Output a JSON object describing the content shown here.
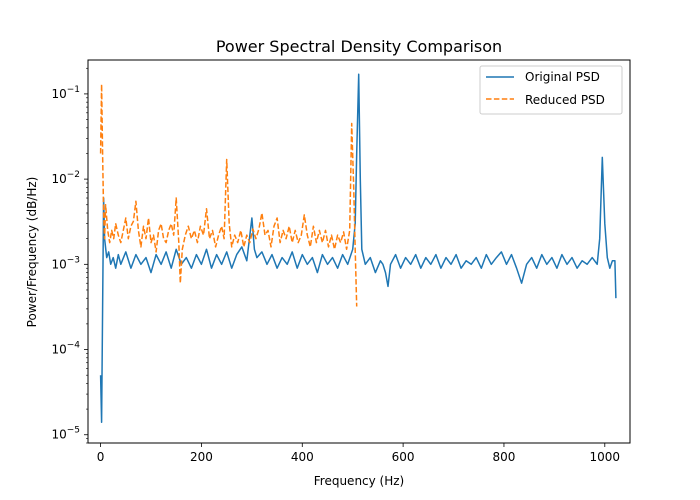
{
  "chart_data": {
    "type": "line",
    "title": "Power Spectral Density Comparison",
    "xlabel": "Frequency (Hz)",
    "ylabel": "Power/Frequency (dB/Hz)",
    "xlim": [
      -25,
      1050
    ],
    "ylim": [
      8e-06,
      0.25
    ],
    "yscale": "log",
    "grid": false,
    "legend_position": "top-right",
    "x_ticks": [
      0,
      200,
      400,
      600,
      800,
      1000
    ],
    "x_tick_labels": [
      "0",
      "200",
      "400",
      "600",
      "800",
      "1000"
    ],
    "y_ticks": [
      1e-05,
      0.0001,
      0.001,
      0.01,
      0.1
    ],
    "y_tick_labels": [
      "10^-5",
      "10^-4",
      "10^-3",
      "10^-2",
      "10^-1"
    ],
    "series": [
      {
        "name": "Original PSD",
        "color": "#1f77b4",
        "style": "solid",
        "points": [
          [
            0,
            5e-05
          ],
          [
            2,
            1.4e-05
          ],
          [
            4,
            0.0003
          ],
          [
            6,
            0.006
          ],
          [
            8,
            0.002
          ],
          [
            12,
            0.0012
          ],
          [
            16,
            0.0014
          ],
          [
            20,
            0.001
          ],
          [
            25,
            0.0012
          ],
          [
            30,
            0.0009
          ],
          [
            35,
            0.0013
          ],
          [
            40,
            0.001
          ],
          [
            50,
            0.0014
          ],
          [
            60,
            0.0009
          ],
          [
            70,
            0.0013
          ],
          [
            80,
            0.001
          ],
          [
            90,
            0.0012
          ],
          [
            100,
            0.0008
          ],
          [
            110,
            0.0013
          ],
          [
            120,
            0.001
          ],
          [
            130,
            0.0014
          ],
          [
            140,
            0.0009
          ],
          [
            150,
            0.0015
          ],
          [
            160,
            0.001
          ],
          [
            170,
            0.0012
          ],
          [
            180,
            0.0009
          ],
          [
            190,
            0.0013
          ],
          [
            200,
            0.001
          ],
          [
            210,
            0.0015
          ],
          [
            220,
            0.0009
          ],
          [
            230,
            0.0013
          ],
          [
            240,
            0.001
          ],
          [
            250,
            0.0014
          ],
          [
            260,
            0.0009
          ],
          [
            270,
            0.0013
          ],
          [
            280,
            0.0016
          ],
          [
            290,
            0.0011
          ],
          [
            300,
            0.0035
          ],
          [
            305,
            0.0015
          ],
          [
            310,
            0.0012
          ],
          [
            320,
            0.0014
          ],
          [
            330,
            0.001
          ],
          [
            340,
            0.0013
          ],
          [
            350,
            0.0009
          ],
          [
            360,
            0.0012
          ],
          [
            370,
            0.001
          ],
          [
            380,
            0.0014
          ],
          [
            390,
            0.0009
          ],
          [
            400,
            0.0013
          ],
          [
            410,
            0.001
          ],
          [
            420,
            0.0012
          ],
          [
            430,
            0.0008
          ],
          [
            440,
            0.0013
          ],
          [
            450,
            0.001
          ],
          [
            460,
            0.0012
          ],
          [
            470,
            0.0009
          ],
          [
            480,
            0.0013
          ],
          [
            490,
            0.001
          ],
          [
            500,
            0.0015
          ],
          [
            505,
            0.003
          ],
          [
            508,
            0.02
          ],
          [
            512,
            0.17
          ],
          [
            515,
            0.01
          ],
          [
            518,
            0.0015
          ],
          [
            525,
            0.001
          ],
          [
            535,
            0.0012
          ],
          [
            545,
            0.0008
          ],
          [
            555,
            0.0011
          ],
          [
            560,
            0.001
          ],
          [
            565,
            0.0008
          ],
          [
            570,
            0.00055
          ],
          [
            575,
            0.001
          ],
          [
            585,
            0.0013
          ],
          [
            595,
            0.0009
          ],
          [
            605,
            0.0012
          ],
          [
            615,
            0.001
          ],
          [
            625,
            0.0013
          ],
          [
            635,
            0.0009
          ],
          [
            645,
            0.0012
          ],
          [
            655,
            0.001
          ],
          [
            665,
            0.0013
          ],
          [
            675,
            0.0009
          ],
          [
            685,
            0.0012
          ],
          [
            695,
            0.001
          ],
          [
            705,
            0.0013
          ],
          [
            715,
            0.0009
          ],
          [
            725,
            0.0011
          ],
          [
            735,
            0.001
          ],
          [
            745,
            0.0012
          ],
          [
            755,
            0.0009
          ],
          [
            765,
            0.0013
          ],
          [
            775,
            0.001
          ],
          [
            785,
            0.0012
          ],
          [
            795,
            0.0014
          ],
          [
            805,
            0.001
          ],
          [
            815,
            0.0013
          ],
          [
            825,
            0.0009
          ],
          [
            835,
            0.0006
          ],
          [
            845,
            0.001
          ],
          [
            855,
            0.0012
          ],
          [
            865,
            0.0009
          ],
          [
            875,
            0.0013
          ],
          [
            885,
            0.001
          ],
          [
            895,
            0.0012
          ],
          [
            905,
            0.0009
          ],
          [
            915,
            0.0013
          ],
          [
            925,
            0.001
          ],
          [
            935,
            0.0012
          ],
          [
            945,
            0.0009
          ],
          [
            955,
            0.0011
          ],
          [
            965,
            0.001
          ],
          [
            975,
            0.0012
          ],
          [
            985,
            0.001
          ],
          [
            990,
            0.002
          ],
          [
            995,
            0.018
          ],
          [
            1000,
            0.003
          ],
          [
            1005,
            0.0012
          ],
          [
            1010,
            0.0009
          ],
          [
            1015,
            0.0011
          ],
          [
            1020,
            0.0011
          ],
          [
            1022,
            0.0004
          ]
        ]
      },
      {
        "name": "Reduced PSD",
        "color": "#ff7f0e",
        "style": "dashed",
        "points": [
          [
            0,
            0.02
          ],
          [
            2,
            0.13
          ],
          [
            4,
            0.02
          ],
          [
            6,
            0.004
          ],
          [
            8,
            0.002
          ],
          [
            10,
            0.005
          ],
          [
            14,
            0.0025
          ],
          [
            18,
            0.0018
          ],
          [
            22,
            0.0025
          ],
          [
            26,
            0.002
          ],
          [
            30,
            0.003
          ],
          [
            35,
            0.0022
          ],
          [
            40,
            0.0018
          ],
          [
            45,
            0.0025
          ],
          [
            50,
            0.0035
          ],
          [
            55,
            0.002
          ],
          [
            60,
            0.0028
          ],
          [
            65,
            0.0032
          ],
          [
            70,
            0.0055
          ],
          [
            75,
            0.0025
          ],
          [
            80,
            0.0016
          ],
          [
            85,
            0.0028
          ],
          [
            90,
            0.002
          ],
          [
            95,
            0.0035
          ],
          [
            100,
            0.0018
          ],
          [
            105,
            0.0022
          ],
          [
            110,
            0.0014
          ],
          [
            115,
            0.0025
          ],
          [
            120,
            0.003
          ],
          [
            125,
            0.002
          ],
          [
            130,
            0.0018
          ],
          [
            135,
            0.0025
          ],
          [
            140,
            0.003
          ],
          [
            145,
            0.0022
          ],
          [
            150,
            0.006
          ],
          [
            155,
            0.0018
          ],
          [
            158,
            0.0006
          ],
          [
            162,
            0.0015
          ],
          [
            168,
            0.0022
          ],
          [
            174,
            0.0028
          ],
          [
            180,
            0.002
          ],
          [
            186,
            0.0025
          ],
          [
            192,
            0.0018
          ],
          [
            198,
            0.0028
          ],
          [
            204,
            0.0022
          ],
          [
            210,
            0.0045
          ],
          [
            216,
            0.002
          ],
          [
            222,
            0.0025
          ],
          [
            228,
            0.0016
          ],
          [
            234,
            0.0022
          ],
          [
            240,
            0.0028
          ],
          [
            245,
            0.002
          ],
          [
            250,
            0.017
          ],
          [
            255,
            0.003
          ],
          [
            260,
            0.0016
          ],
          [
            266,
            0.0022
          ],
          [
            272,
            0.0018
          ],
          [
            278,
            0.0025
          ],
          [
            284,
            0.0016
          ],
          [
            290,
            0.0022
          ],
          [
            296,
            0.0018
          ],
          [
            302,
            0.0026
          ],
          [
            308,
            0.002
          ],
          [
            314,
            0.0026
          ],
          [
            320,
            0.004
          ],
          [
            326,
            0.0022
          ],
          [
            332,
            0.0025
          ],
          [
            338,
            0.0016
          ],
          [
            344,
            0.0028
          ],
          [
            350,
            0.0035
          ],
          [
            356,
            0.0018
          ],
          [
            362,
            0.0025
          ],
          [
            368,
            0.002
          ],
          [
            374,
            0.0028
          ],
          [
            380,
            0.0018
          ],
          [
            386,
            0.0025
          ],
          [
            392,
            0.0018
          ],
          [
            398,
            0.0022
          ],
          [
            404,
            0.0038
          ],
          [
            410,
            0.0022
          ],
          [
            416,
            0.0016
          ],
          [
            422,
            0.0028
          ],
          [
            428,
            0.0018
          ],
          [
            434,
            0.0025
          ],
          [
            440,
            0.0018
          ],
          [
            446,
            0.0025
          ],
          [
            452,
            0.0016
          ],
          [
            458,
            0.0022
          ],
          [
            464,
            0.0015
          ],
          [
            470,
            0.0022
          ],
          [
            476,
            0.0018
          ],
          [
            482,
            0.0024
          ],
          [
            488,
            0.0015
          ],
          [
            494,
            0.0025
          ],
          [
            498,
            0.045
          ],
          [
            502,
            0.008
          ],
          [
            505,
            0.0015
          ],
          [
            508,
            0.00032
          ]
        ]
      }
    ]
  }
}
